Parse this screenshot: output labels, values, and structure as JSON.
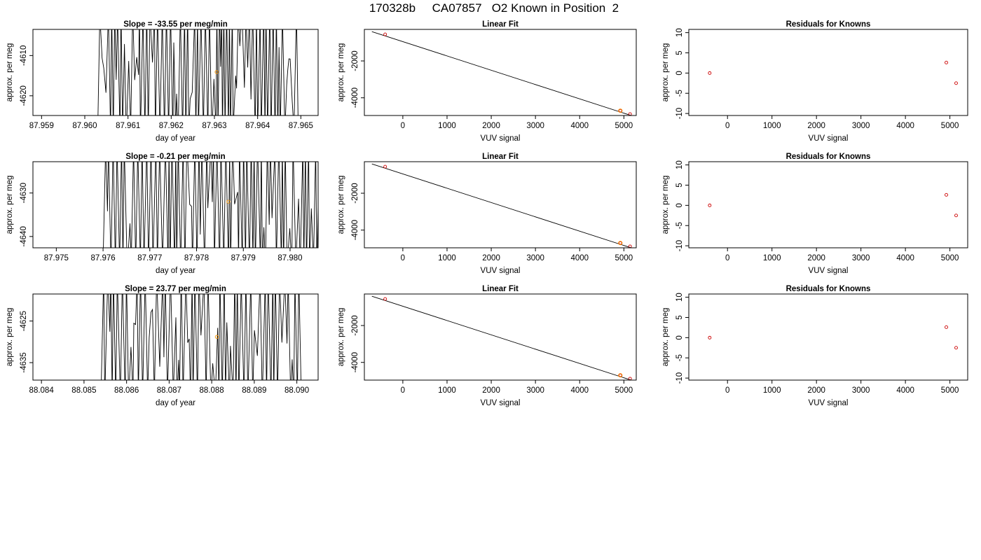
{
  "page_title": "170328b     CA07857   O2 Known in Position  2",
  "colors": {
    "trace": "#000000",
    "known_marker": "#ff9900",
    "fit_marker": "#cc0000",
    "frame": "#000000"
  },
  "panels": [
    {
      "row": 0,
      "time_series": {
        "title": "Slope =  -33.55  per meg/min",
        "xlabel": "day of year",
        "ylabel": "approx. per meg",
        "xlim": [
          87.9588,
          87.9654
        ],
        "ylim": [
          -4624.9,
          -4603.5
        ],
        "xticks": [
          87.959,
          87.96,
          87.961,
          87.962,
          87.963,
          87.964,
          87.965
        ],
        "xtick_labels": [
          "87.959",
          "87.960",
          "87.961",
          "87.962",
          "87.963",
          "87.964",
          "87.965"
        ],
        "yticks": [
          -4610,
          -4620
        ],
        "ytick_labels": [
          "-4610",
          "-4620"
        ],
        "trace_xrange": [
          87.9603,
          87.9649
        ],
        "trace_density": 0.9,
        "marker": {
          "x": 87.96305,
          "y": -4614.1
        }
      },
      "linear_fit": {
        "title": "Linear Fit",
        "xlabel": "VUV signal",
        "ylabel": "approx. per meg",
        "xlim": [
          -870,
          5280
        ],
        "ylim": [
          -4960,
          -290
        ],
        "xticks": [
          0,
          1000,
          2000,
          3000,
          4000,
          5000
        ],
        "xtick_labels": [
          "0",
          "1000",
          "2000",
          "3000",
          "4000",
          "5000"
        ],
        "yticks": [
          -2000,
          -4000
        ],
        "ytick_labels": [
          "-2000",
          "-4000"
        ],
        "line": [
          [
            -700,
            -410
          ],
          [
            5150,
            -4950
          ]
        ],
        "points": [
          [
            -400,
            -560
          ],
          [
            4920,
            -4700
          ],
          [
            5140,
            -4880
          ]
        ],
        "known_point": [
          4920,
          -4700
        ]
      },
      "residuals": {
        "title": "Residuals for Knowns",
        "xlabel": "VUV signal",
        "ylabel": "approx. per meg",
        "xlim": [
          -870,
          5400
        ],
        "ylim": [
          -10.5,
          10.8
        ],
        "xticks": [
          0,
          1000,
          2000,
          3000,
          4000,
          5000
        ],
        "xtick_labels": [
          "0",
          "1000",
          "2000",
          "3000",
          "4000",
          "5000"
        ],
        "yticks": [
          10,
          5,
          0,
          -5,
          -10
        ],
        "ytick_labels": [
          "10",
          "5",
          "0",
          "-5",
          "-10"
        ],
        "points": [
          [
            -400,
            0
          ],
          [
            4920,
            2.6
          ],
          [
            5140,
            -2.5
          ]
        ]
      }
    },
    {
      "row": 1,
      "time_series": {
        "title": "Slope =  -0.21  per meg/min",
        "xlabel": "day of year",
        "ylabel": "approx. per meg",
        "xlim": [
          87.9745,
          87.9806
        ],
        "ylim": [
          -4642.6,
          -4622.8
        ],
        "xticks": [
          87.975,
          87.976,
          87.977,
          87.978,
          87.979,
          87.98
        ],
        "xtick_labels": [
          "87.975",
          "87.976",
          "87.977",
          "87.978",
          "87.979",
          "87.980"
        ],
        "yticks": [
          -4630,
          -4640
        ],
        "ytick_labels": [
          "-4630",
          "-4640"
        ],
        "trace_xrange": [
          87.976,
          87.9806
        ],
        "trace_density": 0.75,
        "marker": {
          "x": 87.97868,
          "y": -4632.0
        }
      },
      "linear_fit": {
        "title": "Linear Fit",
        "xlabel": "VUV signal",
        "ylabel": "approx. per meg",
        "xlim": [
          -870,
          5280
        ],
        "ylim": [
          -4960,
          -290
        ],
        "xticks": [
          0,
          1000,
          2000,
          3000,
          4000,
          5000
        ],
        "xtick_labels": [
          "0",
          "1000",
          "2000",
          "3000",
          "4000",
          "5000"
        ],
        "yticks": [
          -2000,
          -4000
        ],
        "ytick_labels": [
          "-2000",
          "-4000"
        ],
        "line": [
          [
            -700,
            -410
          ],
          [
            5150,
            -4950
          ]
        ],
        "points": [
          [
            -400,
            -560
          ],
          [
            4920,
            -4700
          ],
          [
            5140,
            -4880
          ]
        ],
        "known_point": [
          4920,
          -4700
        ]
      },
      "residuals": {
        "title": "Residuals for Knowns",
        "xlabel": "VUV signal",
        "ylabel": "approx. per meg",
        "xlim": [
          -870,
          5400
        ],
        "ylim": [
          -10.5,
          10.8
        ],
        "xticks": [
          0,
          1000,
          2000,
          3000,
          4000,
          5000
        ],
        "xtick_labels": [
          "0",
          "1000",
          "2000",
          "3000",
          "4000",
          "5000"
        ],
        "yticks": [
          10,
          5,
          0,
          -5,
          -10
        ],
        "ytick_labels": [
          "10",
          "5",
          "0",
          "-5",
          "-10"
        ],
        "points": [
          [
            -400,
            0
          ],
          [
            4920,
            2.6
          ],
          [
            5140,
            -2.5
          ]
        ]
      }
    },
    {
      "row": 2,
      "time_series": {
        "title": "Slope =  23.77  per meg/min",
        "xlabel": "day of year",
        "ylabel": "approx. per meg",
        "xlim": [
          88.0838,
          88.0905
        ],
        "ylim": [
          -4639.2,
          -4618.5
        ],
        "xticks": [
          88.084,
          88.085,
          88.086,
          88.087,
          88.088,
          88.089,
          88.09
        ],
        "xtick_labels": [
          "88.084",
          "88.085",
          "88.086",
          "88.087",
          "88.088",
          "88.089",
          "88.090"
        ],
        "yticks": [
          -4625,
          -4635
        ],
        "ytick_labels": [
          "-4625",
          "-4635"
        ],
        "trace_xrange": [
          88.0854,
          88.0901
        ],
        "trace_density": 0.75,
        "marker": {
          "x": 88.08812,
          "y": -4628.8
        }
      },
      "linear_fit": {
        "title": "Linear Fit",
        "xlabel": "VUV signal",
        "ylabel": "approx. per meg",
        "xlim": [
          -870,
          5280
        ],
        "ylim": [
          -4960,
          -290
        ],
        "xticks": [
          0,
          1000,
          2000,
          3000,
          4000,
          5000
        ],
        "xtick_labels": [
          "0",
          "1000",
          "2000",
          "3000",
          "4000",
          "5000"
        ],
        "yticks": [
          -2000,
          -4000
        ],
        "ytick_labels": [
          "-2000",
          "-4000"
        ],
        "line": [
          [
            -700,
            -410
          ],
          [
            5150,
            -4950
          ]
        ],
        "points": [
          [
            -400,
            -560
          ],
          [
            4920,
            -4700
          ],
          [
            5140,
            -4880
          ]
        ],
        "known_point": [
          4920,
          -4700
        ]
      },
      "residuals": {
        "title": "Residuals for Knowns",
        "xlabel": "VUV signal",
        "ylabel": "approx. per meg",
        "xlim": [
          -870,
          5400
        ],
        "ylim": [
          -10.5,
          10.8
        ],
        "xticks": [
          0,
          1000,
          2000,
          3000,
          4000,
          5000
        ],
        "xtick_labels": [
          "0",
          "1000",
          "2000",
          "3000",
          "4000",
          "5000"
        ],
        "yticks": [
          10,
          5,
          0,
          -5,
          -10
        ],
        "ytick_labels": [
          "10",
          "5",
          "0",
          "-5",
          "-10"
        ],
        "points": [
          [
            -400,
            0
          ],
          [
            4920,
            2.6
          ],
          [
            5140,
            -2.5
          ]
        ]
      }
    }
  ],
  "chart_data": [
    {
      "type": "line",
      "title": "Slope =  -33.55  per meg/min",
      "xlabel": "day of year",
      "ylabel": "approx. per meg",
      "xlim": [
        87.9588,
        87.9654
      ],
      "ylim": [
        -4624.9,
        -4603.5
      ],
      "series": [
        {
          "values": [],
          "note_x_range": [
            87.9603,
            87.9649
          ]
        }
      ],
      "highlight_point": [
        87.96305,
        -4614.1
      ]
    },
    {
      "type": "scatter",
      "title": "Linear Fit",
      "xlabel": "VUV signal",
      "ylabel": "approx. per meg",
      "x": [
        -400,
        4920,
        5140
      ],
      "y": [
        -560,
        -4700,
        -4880
      ],
      "fit_line": [
        [
          -700,
          -410
        ],
        [
          5150,
          -4950
        ]
      ]
    },
    {
      "type": "scatter",
      "title": "Residuals for Knowns",
      "xlabel": "VUV signal",
      "ylabel": "approx. per meg",
      "x": [
        -400,
        4920,
        5140
      ],
      "y": [
        0,
        2.6,
        -2.5
      ],
      "ylim": [
        -10.5,
        10.8
      ]
    },
    {
      "type": "line",
      "title": "Slope =  -0.21  per meg/min",
      "xlabel": "day of year",
      "ylabel": "approx. per meg",
      "xlim": [
        87.9745,
        87.9806
      ],
      "ylim": [
        -4642.6,
        -4622.8
      ],
      "highlight_point": [
        87.97868,
        -4632.0
      ]
    },
    {
      "type": "scatter",
      "title": "Linear Fit",
      "xlabel": "VUV signal",
      "ylabel": "approx. per meg",
      "x": [
        -400,
        4920,
        5140
      ],
      "y": [
        -560,
        -4700,
        -4880
      ]
    },
    {
      "type": "scatter",
      "title": "Residuals for Knowns",
      "xlabel": "VUV signal",
      "ylabel": "approx. per meg",
      "x": [
        -400,
        4920,
        5140
      ],
      "y": [
        0,
        2.6,
        -2.5
      ]
    },
    {
      "type": "line",
      "title": "Slope =  23.77  per meg/min",
      "xlabel": "day of year",
      "ylabel": "approx. per meg",
      "xlim": [
        88.0838,
        88.0905
      ],
      "ylim": [
        -4639.2,
        -4618.5
      ],
      "highlight_point": [
        88.08812,
        -4628.8
      ]
    },
    {
      "type": "scatter",
      "title": "Linear Fit",
      "xlabel": "VUV signal",
      "ylabel": "approx. per meg",
      "x": [
        -400,
        4920,
        5140
      ],
      "y": [
        -560,
        -4700,
        -4880
      ]
    },
    {
      "type": "scatter",
      "title": "Residuals for Knowns",
      "xlabel": "VUV signal",
      "ylabel": "approx. per meg",
      "x": [
        -400,
        4920,
        5140
      ],
      "y": [
        0,
        2.6,
        -2.5
      ]
    }
  ]
}
